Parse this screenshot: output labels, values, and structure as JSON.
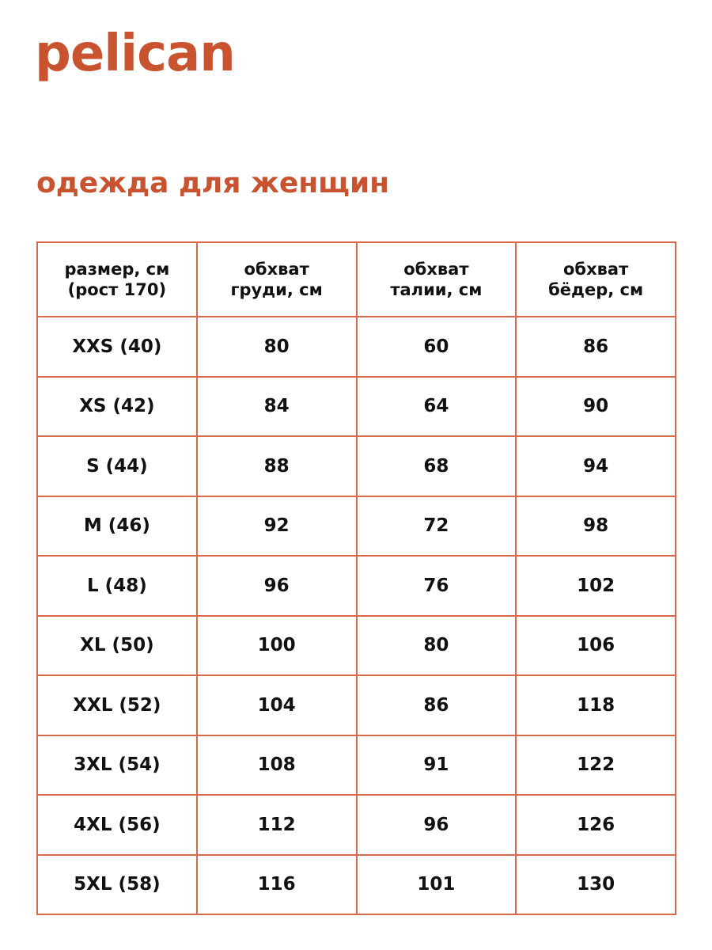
{
  "brand": {
    "logo_text": "pelican",
    "color": "#c9532f"
  },
  "subtitle": "одежда для женщин",
  "table": {
    "border_color": "#d9694b",
    "headers": [
      {
        "line1": "размер, см",
        "line2": "(рост 170)"
      },
      {
        "line1": "обхват",
        "line2": "груди, см"
      },
      {
        "line1": "обхват",
        "line2": "талии, см"
      },
      {
        "line1": "обхват",
        "line2": "бёдер, см"
      }
    ],
    "rows": [
      [
        "XXS (40)",
        "80",
        "60",
        "86"
      ],
      [
        "XS (42)",
        "84",
        "64",
        "90"
      ],
      [
        "S (44)",
        "88",
        "68",
        "94"
      ],
      [
        "M (46)",
        "92",
        "72",
        "98"
      ],
      [
        "L (48)",
        "96",
        "76",
        "102"
      ],
      [
        "XL (50)",
        "100",
        "80",
        "106"
      ],
      [
        "XXL (52)",
        "104",
        "86",
        "118"
      ],
      [
        "3XL (54)",
        "108",
        "91",
        "122"
      ],
      [
        "4XL (56)",
        "112",
        "96",
        "126"
      ],
      [
        "5XL (58)",
        "116",
        "101",
        "130"
      ]
    ]
  }
}
